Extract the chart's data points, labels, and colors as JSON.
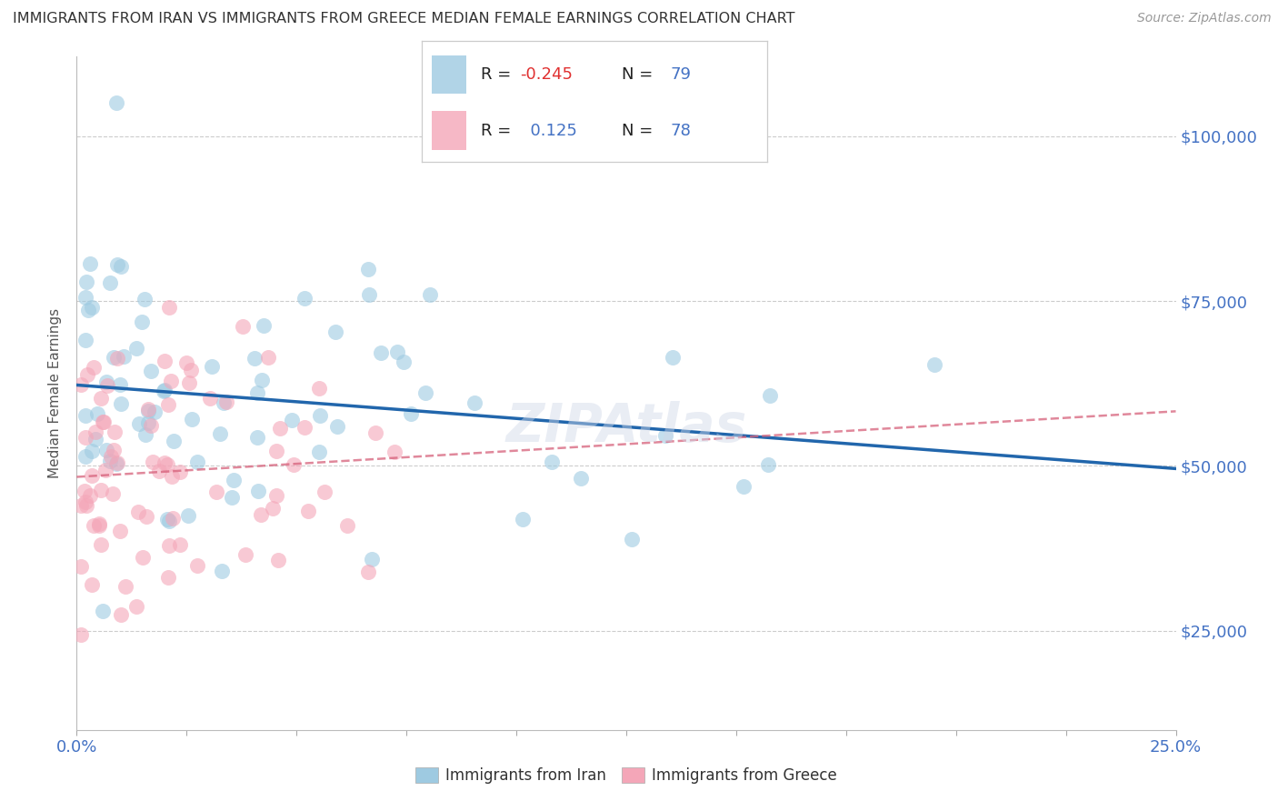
{
  "title": "IMMIGRANTS FROM IRAN VS IMMIGRANTS FROM GREECE MEDIAN FEMALE EARNINGS CORRELATION CHART",
  "source": "Source: ZipAtlas.com",
  "ylabel": "Median Female Earnings",
  "legend_label_1": "Immigrants from Iran",
  "legend_label_2": "Immigrants from Greece",
  "R1": -0.245,
  "N1": 79,
  "R2": 0.125,
  "N2": 78,
  "color_iran": "#9ecae1",
  "color_greece": "#f4a6b8",
  "line_color_iran": "#2166ac",
  "line_color_greece": "#d6607a",
  "xmin": 0.0,
  "xmax": 0.25,
  "ymin": 10000,
  "ymax": 112000,
  "yticks": [
    25000,
    50000,
    75000,
    100000
  ],
  "ytick_labels": [
    "$25,000",
    "$50,000",
    "$75,000",
    "$100,000"
  ],
  "xticks": [
    0.0,
    0.025,
    0.05,
    0.075,
    0.1,
    0.125,
    0.15,
    0.175,
    0.2,
    0.225,
    0.25
  ],
  "background_color": "#ffffff"
}
